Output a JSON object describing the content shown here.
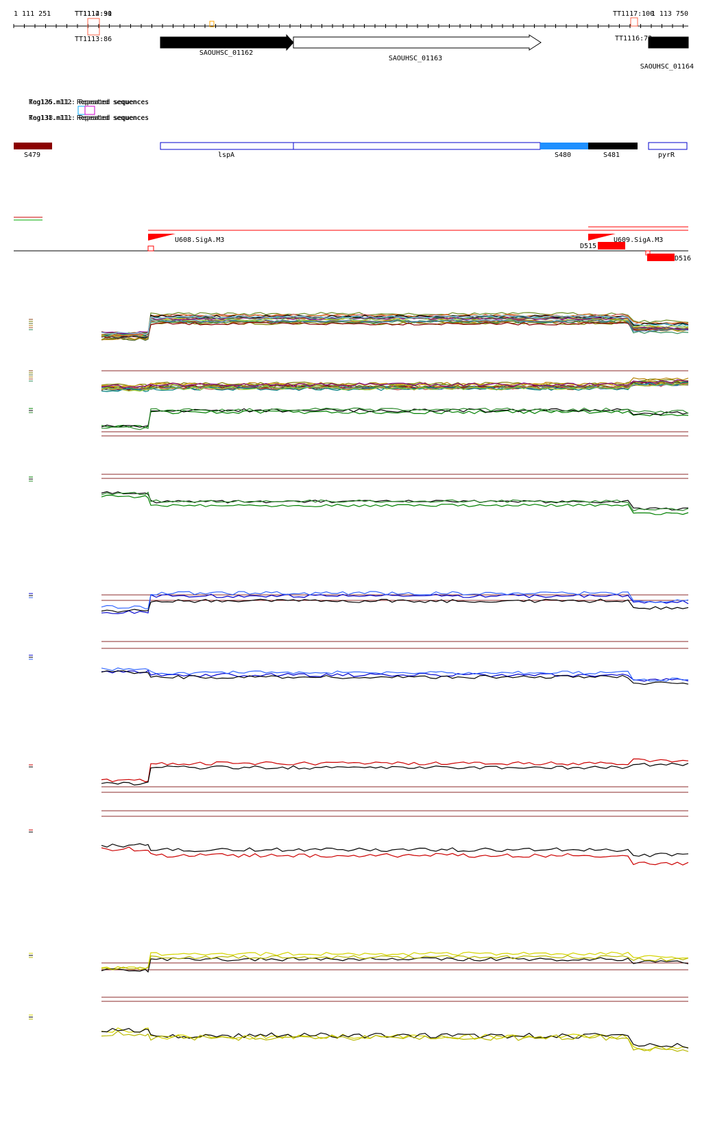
{
  "ruler": {
    "start_label": "1 111 251",
    "end_label": "1 113 750"
  },
  "terminators": [
    {
      "label": "TT1114:30"
    },
    {
      "label": "TT1112:91"
    },
    {
      "label": "TT1113:86"
    },
    {
      "label": "TT1117:100"
    },
    {
      "label": "TT1116:73"
    }
  ],
  "genes": [
    {
      "label": "SAOUHSC_01162",
      "strand": "+",
      "fill": "#000000"
    },
    {
      "label": "SAOUHSC_01163",
      "strand": "+",
      "fill": "#ffffff"
    },
    {
      "label": "SAOUHSC_01164",
      "strand": "+",
      "fill": "#000000"
    }
  ],
  "repeats": [
    {
      "label": "Tag135.n11: Repeated sequences"
    },
    {
      "label": "Tag138.n11: Repeated sequences"
    },
    {
      "label": "Reg126.n112: Repeated sequences"
    },
    {
      "label": "Reg131.n111: Repeated sequences"
    }
  ],
  "segments": [
    {
      "label": "S479",
      "color": "#8b0000"
    },
    {
      "label": "lspA",
      "color": "#ffffff"
    },
    {
      "label": "S480",
      "color": "#1e90ff"
    },
    {
      "label": "S481",
      "color": "#000000"
    },
    {
      "label": "pyrR",
      "color": "#ffffff"
    }
  ],
  "promoters": [
    {
      "label": "U608.SigA.M3"
    },
    {
      "label": "U609.SigA.M3"
    }
  ],
  "downshifts": [
    {
      "label": "D515"
    },
    {
      "label": "D516"
    }
  ],
  "colors": {
    "promoter_red": "#ff0000",
    "threshold_brown": "#8b2a2a",
    "green_series": "#008000",
    "blue_series": "#0000cc",
    "red_series": "#cc0000",
    "yellow_series": "#d4d400"
  }
}
